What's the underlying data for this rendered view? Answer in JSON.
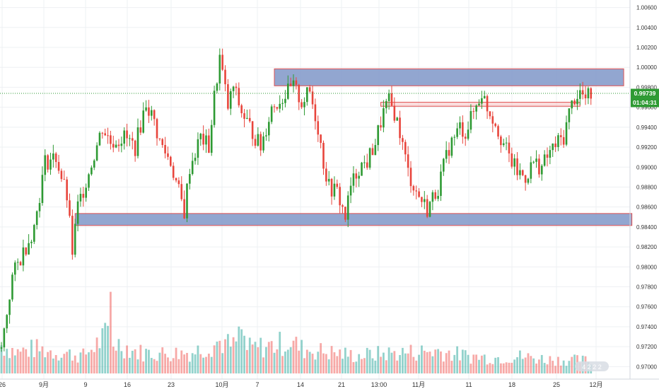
{
  "chart_data": {
    "type": "candlestick",
    "y_axis": {
      "position": "right",
      "ticks": [
        "1.00600",
        "1.00400",
        "1.00200",
        "1.00000",
        "0.99800",
        "0.99600",
        "0.99400",
        "0.99200",
        "0.99000",
        "0.98800",
        "0.98600",
        "0.98400",
        "0.98200",
        "0.98000",
        "0.97800",
        "0.97600",
        "0.97400",
        "0.97200",
        "0.97000"
      ],
      "range": [
        0.96875,
        1.00675
      ]
    },
    "x_axis": {
      "labels": [
        "26",
        "9月",
        "9",
        "16",
        "23",
        "10月",
        "7",
        "14",
        "21",
        "13:00",
        "11月",
        "11",
        "18",
        "25",
        "12月"
      ]
    },
    "price_tags": [
      {
        "label": "0.99739",
        "value": 0.99739
      },
      {
        "label": "01:04:31",
        "value": 0.9962
      }
    ],
    "current_price_line": 0.99739,
    "zones": [
      {
        "name": "resistance-zone",
        "low": 0.99815,
        "high": 0.99985,
        "from_index": 100,
        "to_index": 228
      },
      {
        "name": "mid-resistance-zone",
        "low": 0.9961,
        "high": 0.9965,
        "from_index": 139,
        "to_index": 212
      },
      {
        "name": "support-zone",
        "low": 0.98415,
        "high": 0.98535,
        "from_index": 27,
        "to_index": 231
      }
    ],
    "colors": {
      "up": "#26a69a",
      "down": "#ef5350",
      "up_candle": "#2e9a33",
      "down_candle": "#e8453c",
      "zone_fill": "#7f96c8",
      "zone_border": "#e05050",
      "price_tag_bg": "#2e9a33",
      "grid": "#eef0f3",
      "axis_text": "#333333"
    },
    "watermark_text": "4 2 2 2",
    "series_knots": [
      [
        0,
        0.9718
      ],
      [
        4,
        0.979
      ],
      [
        8,
        0.9815
      ],
      [
        12,
        0.984
      ],
      [
        16,
        0.9905
      ],
      [
        20,
        0.991
      ],
      [
        24,
        0.987
      ],
      [
        26,
        0.9815
      ],
      [
        28,
        0.986
      ],
      [
        32,
        0.9895
      ],
      [
        37,
        0.994
      ],
      [
        40,
        0.9925
      ],
      [
        45,
        0.993
      ],
      [
        49,
        0.992
      ],
      [
        53,
        0.9965
      ],
      [
        56,
        0.9945
      ],
      [
        58,
        0.9925
      ],
      [
        62,
        0.9905
      ],
      [
        65,
        0.9875
      ],
      [
        67,
        0.9855
      ],
      [
        69,
        0.99
      ],
      [
        73,
        0.993
      ],
      [
        76,
        0.992
      ],
      [
        78,
        0.997
      ],
      [
        80,
        1.001
      ],
      [
        83,
        0.996
      ],
      [
        85,
        0.998
      ],
      [
        88,
        0.9955
      ],
      [
        91,
        0.994
      ],
      [
        95,
        0.992
      ],
      [
        99,
        0.996
      ],
      [
        103,
        0.997
      ],
      [
        107,
        0.998
      ],
      [
        110,
        0.9965
      ],
      [
        113,
        0.9975
      ],
      [
        116,
        0.994
      ],
      [
        118,
        0.9905
      ],
      [
        120,
        0.988
      ],
      [
        123,
        0.9875
      ],
      [
        126,
        0.985
      ],
      [
        128,
        0.988
      ],
      [
        131,
        0.99
      ],
      [
        134,
        0.9905
      ],
      [
        137,
        0.9925
      ],
      [
        140,
        0.9955
      ],
      [
        142,
        0.9965
      ],
      [
        144,
        0.9955
      ],
      [
        146,
        0.9935
      ],
      [
        149,
        0.9895
      ],
      [
        152,
        0.9875
      ],
      [
        156,
        0.9858
      ],
      [
        160,
        0.988
      ],
      [
        164,
        0.992
      ],
      [
        168,
        0.994
      ],
      [
        170,
        0.9935
      ],
      [
        173,
        0.9955
      ],
      [
        176,
        0.9975
      ],
      [
        178,
        0.996
      ],
      [
        181,
        0.9945
      ],
      [
        183,
        0.993
      ],
      [
        186,
        0.991
      ],
      [
        189,
        0.9895
      ],
      [
        192,
        0.989
      ],
      [
        195,
        0.9905
      ],
      [
        198,
        0.99
      ],
      [
        201,
        0.9915
      ],
      [
        204,
        0.9925
      ],
      [
        206,
        0.993
      ],
      [
        208,
        0.9955
      ],
      [
        210,
        0.997
      ],
      [
        212,
        0.9975
      ],
      [
        214,
        0.9968
      ],
      [
        216,
        0.9973
      ]
    ],
    "volume_knots": [
      [
        0,
        40
      ],
      [
        6,
        30
      ],
      [
        12,
        35
      ],
      [
        20,
        30
      ],
      [
        30,
        25
      ],
      [
        39,
        55
      ],
      [
        40,
        110
      ],
      [
        41,
        45
      ],
      [
        50,
        30
      ],
      [
        60,
        28
      ],
      [
        70,
        30
      ],
      [
        80,
        45
      ],
      [
        85,
        38
      ],
      [
        88,
        60
      ],
      [
        90,
        35
      ],
      [
        100,
        40
      ],
      [
        106,
        45
      ],
      [
        110,
        35
      ],
      [
        120,
        30
      ],
      [
        130,
        25
      ],
      [
        140,
        28
      ],
      [
        150,
        30
      ],
      [
        160,
        32
      ],
      [
        170,
        25
      ],
      [
        180,
        22
      ],
      [
        190,
        24
      ],
      [
        200,
        20
      ],
      [
        216,
        18
      ]
    ],
    "total_bars": 217
  }
}
